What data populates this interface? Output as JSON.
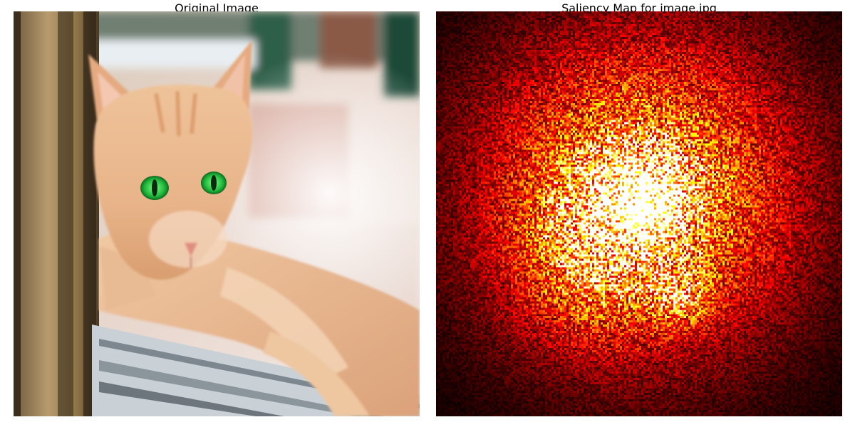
{
  "panels": {
    "left": {
      "title": "Original Image"
    },
    "right": {
      "title": "Saliency Map for image.jpg"
    }
  },
  "colors": {
    "background": "#ffffff",
    "heat_low": "#000000",
    "heat_mid": "#cc1100",
    "heat_high": "#ffff66",
    "cat_fur": "#e8b48a",
    "cat_eyes": "#2ecc40"
  },
  "icons": {
    "left_content": "cat-photo",
    "right_content": "saliency-heatmap"
  }
}
